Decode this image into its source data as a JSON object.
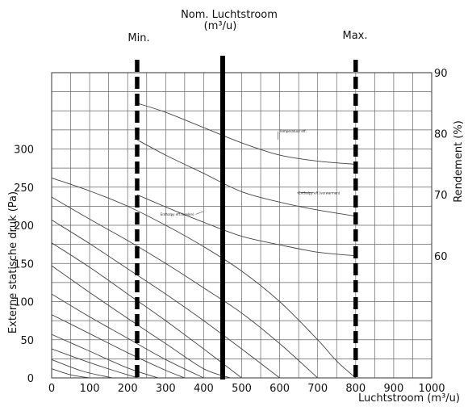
{
  "chart_data": {
    "type": "line",
    "header": {
      "nominal_line1": "Nom. Luchtstroom",
      "nominal_line2": "(m³/u)",
      "min_label": "Min.",
      "max_label": "Max."
    },
    "xlabel": "Luchtstroom (m³/u)",
    "ylabel_left": "Externe statische druk (Pa)",
    "ylabel_right": "Rendement (%)",
    "xlim": [
      0,
      1000
    ],
    "ylim_left": [
      0,
      400
    ],
    "ylim_right": [
      40,
      90
    ],
    "x_ticks": [
      "0",
      "100",
      "200",
      "300",
      "400",
      "500",
      "600",
      "700",
      "800",
      "900",
      "1000"
    ],
    "y_ticks_left": [
      "0",
      "50",
      "100",
      "150",
      "200",
      "250",
      "300"
    ],
    "y_ticks_right": [
      "60",
      "70",
      "80",
      "90"
    ],
    "grid": true,
    "vertical_markers": [
      {
        "name": "Min.",
        "x": 225,
        "style": "dashed"
      },
      {
        "name": "Nom.",
        "x": 450,
        "style": "solid"
      },
      {
        "name": "Max.",
        "x": 800,
        "style": "dashed"
      }
    ],
    "pressure_curves": [
      {
        "x": [
          0,
          100,
          200,
          300,
          400,
          500,
          600,
          700,
          750,
          800
        ],
        "y": [
          262,
          245,
          225,
          200,
          172,
          140,
          100,
          50,
          22,
          0
        ]
      },
      {
        "x": [
          0,
          100,
          200,
          300,
          400,
          500,
          600,
          700
        ],
        "y": [
          237,
          208,
          180,
          150,
          118,
          85,
          45,
          0
        ]
      },
      {
        "x": [
          0,
          100,
          200,
          300,
          400,
          500,
          600
        ],
        "y": [
          207,
          176,
          143,
          110,
          75,
          38,
          0
        ]
      },
      {
        "x": [
          0,
          100,
          200,
          300,
          400,
          500
        ],
        "y": [
          177,
          145,
          110,
          75,
          38,
          0
        ]
      },
      {
        "x": [
          0,
          100,
          200,
          300,
          400,
          470
        ],
        "y": [
          147,
          112,
          78,
          45,
          12,
          0
        ]
      },
      {
        "x": [
          0,
          100,
          200,
          300,
          400
        ],
        "y": [
          110,
          80,
          52,
          24,
          0
        ]
      },
      {
        "x": [
          0,
          100,
          200,
          300,
          350
        ],
        "y": [
          83,
          58,
          33,
          10,
          0
        ]
      },
      {
        "x": [
          0,
          100,
          200,
          280
        ],
        "y": [
          57,
          35,
          13,
          0
        ]
      },
      {
        "x": [
          0,
          100,
          200,
          230
        ],
        "y": [
          38,
          20,
          4,
          0
        ]
      },
      {
        "x": [
          0,
          80,
          160
        ],
        "y": [
          24,
          9,
          0
        ]
      },
      {
        "x": [
          0,
          50,
          100
        ],
        "y": [
          12,
          4,
          0
        ]
      }
    ],
    "efficiency_curves": [
      {
        "label": "Temperatuur eff.",
        "x": [
          225,
          300,
          400,
          500,
          600,
          700,
          800
        ],
        "y": [
          85,
          83.5,
          81,
          78.5,
          76.5,
          75.5,
          75
        ]
      },
      {
        "label": "Enthalpy eff.(verwarmen)",
        "x": [
          225,
          300,
          400,
          500,
          600,
          700,
          800
        ],
        "y": [
          79,
          76.5,
          73.5,
          70.5,
          68.8,
          67.5,
          66.5
        ]
      },
      {
        "label": "Enthalpy eff.(koelen)",
        "x": [
          225,
          300,
          400,
          500,
          600,
          700,
          800
        ],
        "y": [
          70,
          68,
          65.5,
          63.2,
          61.8,
          60.6,
          60
        ]
      }
    ]
  }
}
